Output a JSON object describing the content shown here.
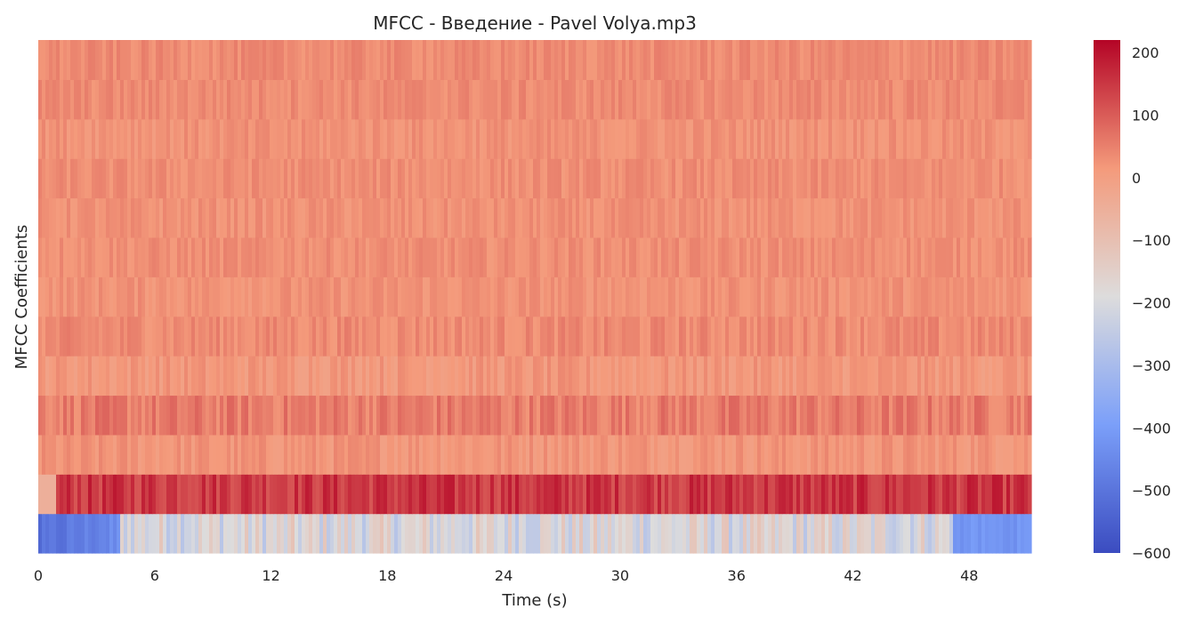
{
  "chart_data": {
    "type": "heatmap",
    "title": "MFCC - Введение - Pavel Volya.mp3",
    "xlabel": "Time (s)",
    "ylabel": "MFCC Coefficients",
    "x_ticks": [
      0,
      6,
      12,
      18,
      24,
      30,
      36,
      42,
      48
    ],
    "xlim": [
      0,
      51.2
    ],
    "n_coefficients": 13,
    "colormap": "coolwarm",
    "colorbar": {
      "vmin": -600,
      "vmax": 220,
      "ticks": [
        200,
        100,
        0,
        -100,
        -200,
        -300,
        -400,
        -500,
        -600
      ],
      "tick_labels": [
        "200",
        "100",
        "0",
        "−100",
        "−200",
        "−300",
        "−400",
        "−500",
        "−600"
      ]
    },
    "coefficient_means": [
      {
        "index": 0,
        "mean": -190,
        "spread": 80
      },
      {
        "index": 1,
        "mean": 150,
        "spread": 45
      },
      {
        "index": 2,
        "mean": 20,
        "spread": 25
      },
      {
        "index": 3,
        "mean": 55,
        "spread": 35
      },
      {
        "index": 4,
        "mean": 15,
        "spread": 25
      },
      {
        "index": 5,
        "mean": 35,
        "spread": 25
      },
      {
        "index": 6,
        "mean": 25,
        "spread": 20
      },
      {
        "index": 7,
        "mean": 30,
        "spread": 20
      },
      {
        "index": 8,
        "mean": 25,
        "spread": 20
      },
      {
        "index": 9,
        "mean": 30,
        "spread": 20
      },
      {
        "index": 10,
        "mean": 25,
        "spread": 20
      },
      {
        "index": 11,
        "mean": 35,
        "spread": 20
      },
      {
        "index": 12,
        "mean": 35,
        "spread": 20
      }
    ]
  }
}
